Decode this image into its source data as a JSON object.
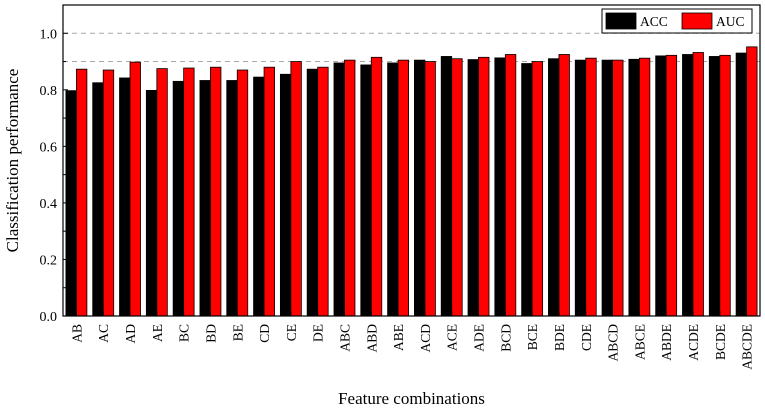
{
  "chart_data": {
    "type": "bar",
    "xlabel": "Feature combinations",
    "ylabel": "Classification performance",
    "ylim": [
      0,
      1.1
    ],
    "yticks": [
      "0.0",
      "0.2",
      "0.4",
      "0.6",
      "0.8",
      "1.0"
    ],
    "reference_lines": [
      0.9,
      1.0
    ],
    "legend_position": "top-right",
    "categories": [
      "AB",
      "AC",
      "AD",
      "AE",
      "BC",
      "BD",
      "BE",
      "CD",
      "CE",
      "DE",
      "ABC",
      "ABD",
      "ABE",
      "ACD",
      "ACE",
      "ADE",
      "BCD",
      "BCE",
      "BDE",
      "CDE",
      "ABCD",
      "ABCE",
      "ABDE",
      "ACDE",
      "BCDE",
      "ABCDE"
    ],
    "series": [
      {
        "name": "ACC",
        "color": "#000000",
        "values": [
          0.797,
          0.825,
          0.842,
          0.798,
          0.83,
          0.833,
          0.833,
          0.845,
          0.855,
          0.873,
          0.895,
          0.888,
          0.895,
          0.905,
          0.918,
          0.907,
          0.913,
          0.893,
          0.91,
          0.905,
          0.905,
          0.908,
          0.92,
          0.925,
          0.918,
          0.93
        ]
      },
      {
        "name": "AUC",
        "color": "#ff0000",
        "values": [
          0.873,
          0.87,
          0.898,
          0.875,
          0.877,
          0.88,
          0.87,
          0.88,
          0.9,
          0.88,
          0.905,
          0.915,
          0.905,
          0.9,
          0.91,
          0.915,
          0.925,
          0.9,
          0.925,
          0.912,
          0.905,
          0.912,
          0.922,
          0.932,
          0.922,
          0.952
        ]
      }
    ]
  }
}
